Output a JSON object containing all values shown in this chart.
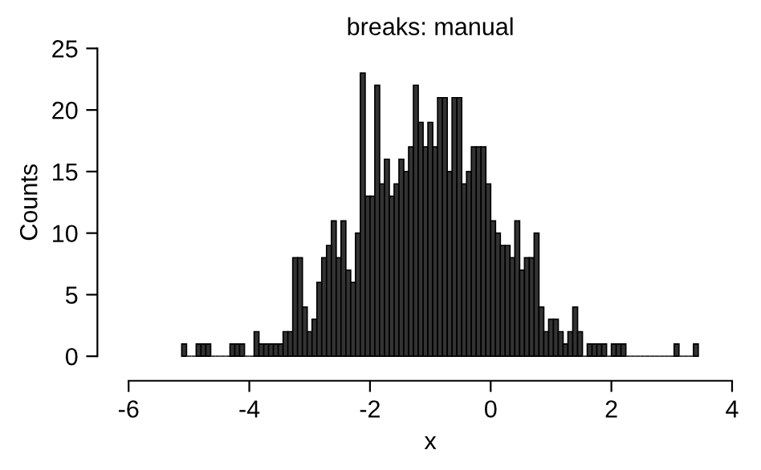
{
  "chart_data": {
    "type": "histogram",
    "title": "breaks: manual",
    "xlabel": "x",
    "ylabel": "Counts",
    "bins": [
      -5.12,
      -5.04,
      -4.96,
      -4.88,
      -4.8,
      -4.72,
      -4.64,
      -4.56,
      -4.48,
      -4.4,
      -4.32,
      -4.24,
      -4.16,
      -4.08,
      -4.0,
      -3.92,
      -3.84,
      -3.76,
      -3.68,
      -3.6,
      -3.52,
      -3.44,
      -3.36,
      -3.28,
      -3.2,
      -3.12,
      -3.04,
      -2.96,
      -2.88,
      -2.8,
      -2.72,
      -2.64,
      -2.56,
      -2.48,
      -2.4,
      -2.32,
      -2.24,
      -2.16,
      -2.08,
      -2.0,
      -1.92,
      -1.84,
      -1.76,
      -1.68,
      -1.6,
      -1.52,
      -1.44,
      -1.36,
      -1.28,
      -1.2,
      -1.12,
      -1.04,
      -0.96,
      -0.88,
      -0.8,
      -0.72,
      -0.64,
      -0.56,
      -0.48,
      -0.4,
      -0.32,
      -0.24,
      -0.16,
      -0.08,
      0.0,
      0.08,
      0.16,
      0.24,
      0.32,
      0.4,
      0.48,
      0.56,
      0.64,
      0.72,
      0.8,
      0.88,
      0.96,
      1.04,
      1.12,
      1.2,
      1.28,
      1.36,
      1.44,
      1.52,
      1.6,
      1.68,
      1.76,
      1.84,
      1.92,
      2.0,
      2.08,
      2.16,
      2.24,
      2.32,
      2.4,
      2.48,
      2.56,
      2.64,
      2.72,
      2.8,
      2.88,
      2.96,
      3.04,
      3.12,
      3.2,
      3.28,
      3.36,
      3.44
    ],
    "values": [
      1,
      0,
      0,
      1,
      1,
      1,
      0,
      0,
      0,
      0,
      1,
      1,
      1,
      0,
      0,
      2,
      1,
      1,
      1,
      1,
      1,
      2,
      2,
      8,
      8,
      4,
      2,
      3,
      6,
      8,
      9,
      11,
      8,
      11,
      7,
      6,
      10,
      23,
      13,
      13,
      22,
      14,
      16,
      13,
      14,
      16,
      15,
      17,
      22,
      19,
      17,
      19,
      17,
      21,
      21,
      15,
      21,
      21,
      14,
      15,
      17,
      17,
      17,
      14,
      11,
      10,
      9,
      9,
      8,
      11,
      7,
      8,
      8,
      10,
      4,
      2,
      3,
      3,
      2,
      1,
      2,
      4,
      2,
      0,
      1,
      1,
      1,
      1,
      0,
      1,
      1,
      1,
      0,
      0,
      0,
      0,
      0,
      0,
      0,
      0,
      0,
      0,
      1,
      0,
      0,
      0,
      1
    ],
    "color": "#333333",
    "xlim": [
      -6,
      4
    ],
    "xticks": [
      -6,
      -4,
      -2,
      0,
      2,
      4
    ],
    "ylim": [
      0,
      25
    ],
    "yticks": [
      0,
      5,
      10,
      15,
      20,
      25
    ],
    "grid": false,
    "legend": false
  }
}
